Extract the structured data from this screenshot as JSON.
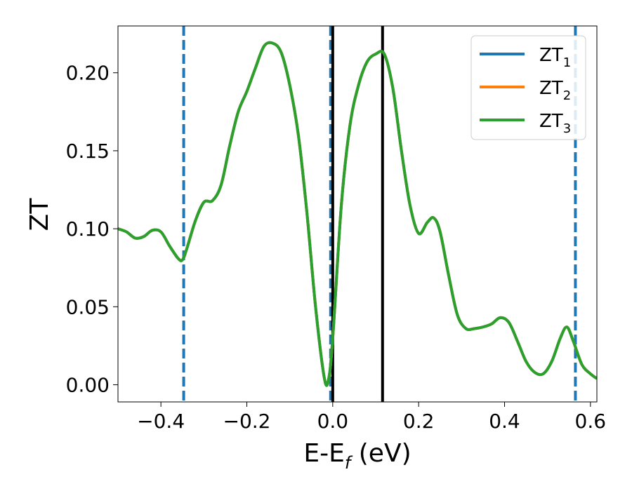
{
  "chart_data": {
    "type": "line",
    "xlabel": "E-E",
    "xlabel_sub": "f",
    "xlabel_unit": " (eV)",
    "ylabel": "ZT",
    "xlim": [
      -0.5,
      0.615
    ],
    "ylim": [
      -0.011,
      0.23
    ],
    "x_ticks": [
      -0.4,
      -0.2,
      0.0,
      0.2,
      0.4,
      0.6
    ],
    "x_tick_labels": [
      "−0.4",
      "−0.2",
      "0.0",
      "0.2",
      "0.4",
      "0.6"
    ],
    "y_ticks": [
      0.0,
      0.05,
      0.1,
      0.15,
      0.2
    ],
    "y_tick_labels": [
      "0.00",
      "0.05",
      "0.10",
      "0.15",
      "0.20"
    ],
    "grid": false,
    "legend_placement": "top-right",
    "series": [
      {
        "name": "ZT",
        "name_sub": "1",
        "color": "#1f77b4"
      },
      {
        "name": "ZT",
        "name_sub": "2",
        "color": "#ff7f0e"
      },
      {
        "name": "ZT",
        "name_sub": "3",
        "color": "#2ca02c"
      }
    ],
    "x": [
      -0.5,
      -0.48,
      -0.46,
      -0.44,
      -0.42,
      -0.4,
      -0.38,
      -0.36,
      -0.35,
      -0.34,
      -0.32,
      -0.3,
      -0.28,
      -0.26,
      -0.24,
      -0.22,
      -0.2,
      -0.18,
      -0.16,
      -0.14,
      -0.12,
      -0.1,
      -0.08,
      -0.06,
      -0.04,
      -0.02,
      -0.01,
      0.0,
      0.02,
      0.04,
      0.06,
      0.08,
      0.1,
      0.12,
      0.14,
      0.16,
      0.18,
      0.2,
      0.22,
      0.235,
      0.25,
      0.27,
      0.29,
      0.31,
      0.33,
      0.35,
      0.37,
      0.39,
      0.41,
      0.43,
      0.45,
      0.47,
      0.49,
      0.51,
      0.53,
      0.545,
      0.56,
      0.58,
      0.6,
      0.615
    ],
    "y": [
      0.1,
      0.098,
      0.094,
      0.095,
      0.099,
      0.098,
      0.089,
      0.081,
      0.08,
      0.087,
      0.105,
      0.117,
      0.118,
      0.128,
      0.153,
      0.175,
      0.188,
      0.203,
      0.217,
      0.219,
      0.213,
      0.192,
      0.16,
      0.11,
      0.05,
      0.005,
      0.003,
      0.03,
      0.115,
      0.166,
      0.192,
      0.207,
      0.212,
      0.212,
      0.19,
      0.15,
      0.115,
      0.097,
      0.104,
      0.107,
      0.098,
      0.07,
      0.045,
      0.036,
      0.036,
      0.037,
      0.039,
      0.043,
      0.04,
      0.028,
      0.015,
      0.008,
      0.007,
      0.015,
      0.03,
      0.037,
      0.028,
      0.013,
      0.007,
      0.004
    ],
    "dashed_vlines": [
      -0.347,
      -0.005,
      0.565
    ],
    "solid_vlines": [
      0.0,
      0.116
    ]
  }
}
